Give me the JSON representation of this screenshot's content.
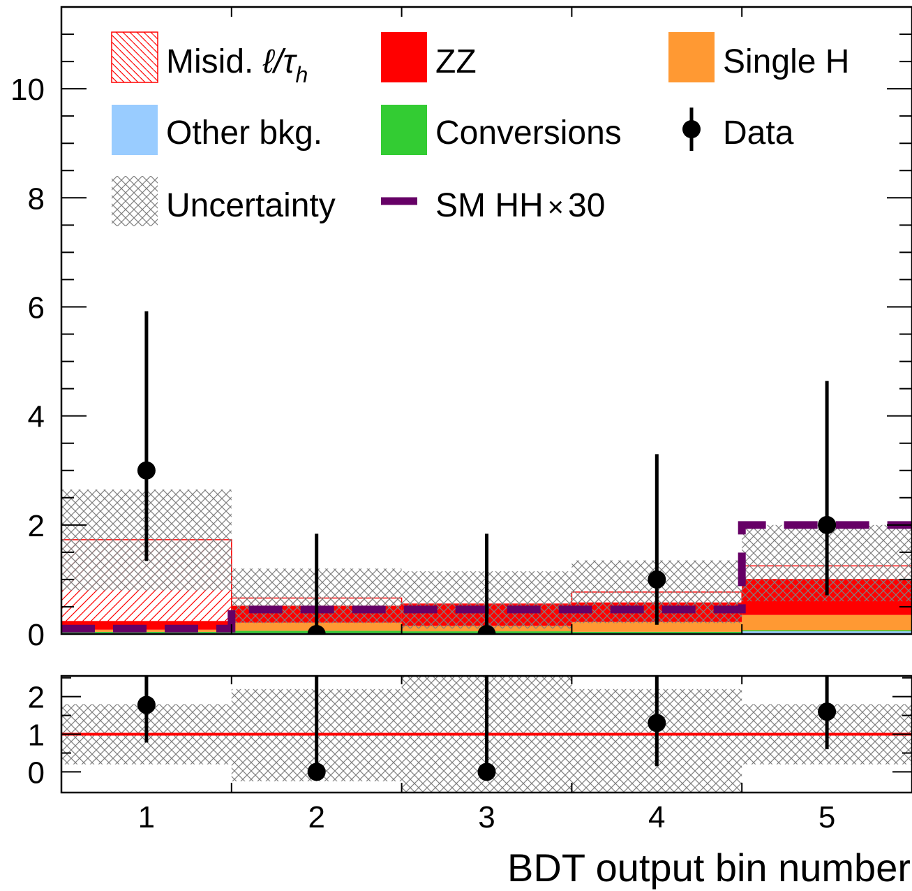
{
  "chart_data": [
    {
      "type": "bar",
      "stacked": true,
      "x": [
        1,
        2,
        3,
        4,
        5
      ],
      "bin_edges": [
        0.5,
        1.5,
        2.5,
        3.5,
        4.5,
        5.5
      ],
      "xlim": [
        0.5,
        5.5
      ],
      "ylim": [
        0,
        11.5
      ],
      "yticks": [
        "0",
        "2",
        "4",
        "6",
        "8",
        "10"
      ],
      "series": [
        {
          "name": "Other bkg.",
          "values": [
            0.02,
            0.02,
            0.02,
            0.02,
            0.05
          ],
          "color": "#99ccff"
        },
        {
          "name": "Conversions",
          "values": [
            0.02,
            0.04,
            0.03,
            0.02,
            0.02
          ],
          "color": "#33cc33"
        },
        {
          "name": "Single H",
          "values": [
            0.04,
            0.15,
            0.1,
            0.18,
            0.28
          ],
          "color": "#ff9933"
        },
        {
          "name": "ZZ",
          "values": [
            0.15,
            0.3,
            0.38,
            0.35,
            0.65
          ],
          "color": "#ff0000"
        },
        {
          "name": "Misid. ℓ/τh",
          "values": [
            1.5,
            0.15,
            0.02,
            0.2,
            0.25
          ],
          "color": "#ff0000",
          "hatched": true
        }
      ],
      "uncertainty": {
        "name": "Uncertainty",
        "low": [
          0.8,
          0.2,
          0.1,
          0.2,
          0.6
        ],
        "high": [
          2.65,
          1.2,
          1.15,
          1.35,
          2.0
        ],
        "color": "#808080"
      },
      "signal": {
        "name": "SM HH",
        "label_suffix": "30",
        "values": [
          0.1,
          0.45,
          0.45,
          0.45,
          2.0
        ],
        "color": "#660066"
      },
      "data": {
        "name": "Data",
        "values": [
          3,
          0,
          0,
          1,
          2
        ],
        "err_low": [
          1.66,
          0,
          0,
          0.83,
          1.29
        ],
        "err_high": [
          2.92,
          1.84,
          1.84,
          2.3,
          2.64
        ]
      },
      "legend": {
        "placement": "top",
        "items": [
          {
            "label_pre": "Misid. ",
            "ell": "ℓ",
            "slash": "/τ",
            "sub": "h",
            "style": "hatch"
          },
          {
            "label": "ZZ",
            "style": "fill",
            "color": "#ff0000"
          },
          {
            "label": "Single H",
            "style": "fill",
            "color": "#ff9933"
          },
          {
            "label": "Other bkg.",
            "style": "fill",
            "color": "#99ccff"
          },
          {
            "label": "Conversions",
            "style": "fill",
            "color": "#33cc33"
          },
          {
            "label": "Data",
            "style": "marker"
          },
          {
            "label": "Uncertainty",
            "style": "crosshatch"
          },
          {
            "label_pre": "SM HH",
            "times": "×",
            "label_post": "30",
            "style": "dash",
            "color": "#660066"
          }
        ]
      }
    },
    {
      "type": "scatter",
      "panel": "ratio",
      "x": [
        1,
        2,
        3,
        4,
        5
      ],
      "xlim": [
        0.5,
        5.5
      ],
      "ylim": [
        -0.55,
        2.55
      ],
      "yticks": [
        "0",
        "1",
        "2"
      ],
      "xticks": [
        "1",
        "2",
        "3",
        "4",
        "5"
      ],
      "xlabel": "BDT output bin number",
      "ratio": {
        "values": [
          1.78,
          0,
          0,
          1.3,
          1.6
        ],
        "err_low": [
          1.0,
          0,
          0,
          1.15,
          1.0
        ],
        "err_high": [
          1.2,
          2.6,
          2.6,
          2.6,
          1.2
        ]
      },
      "uncertainty_band": {
        "low": [
          0.2,
          -0.25,
          -0.55,
          -0.55,
          0.2
        ],
        "high": [
          1.8,
          2.2,
          2.55,
          2.2,
          1.8
        ]
      },
      "reference_line": {
        "y": 1,
        "color": "#ff0000"
      }
    }
  ]
}
